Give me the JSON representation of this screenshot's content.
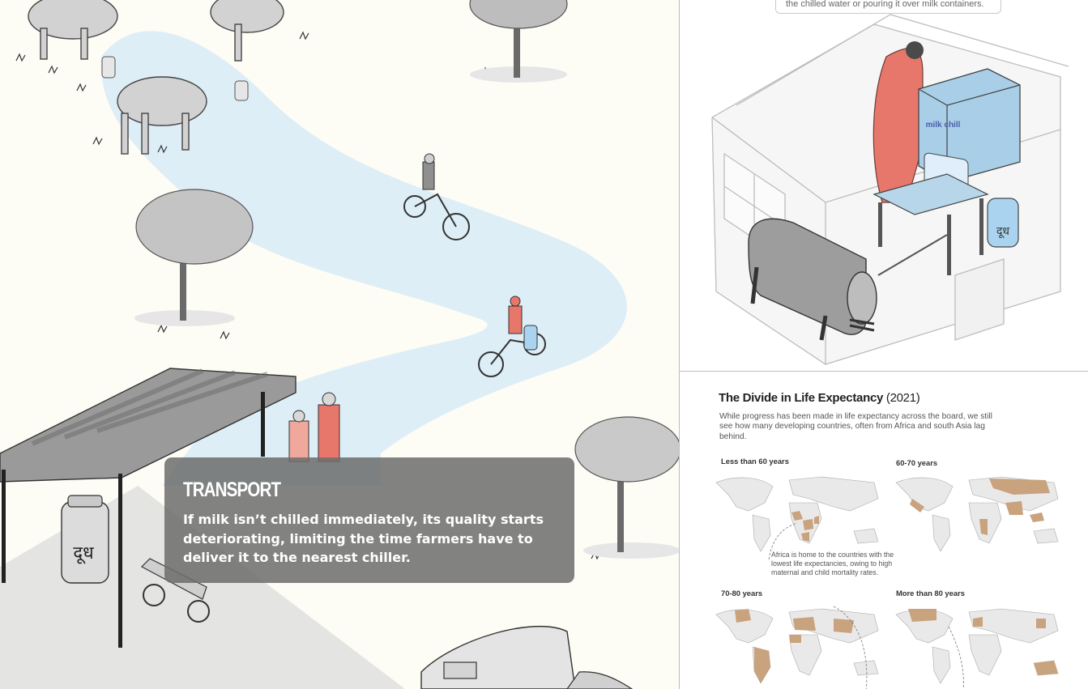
{
  "transport_card": {
    "title": "TRANSPORT",
    "body": "If milk isn’t chilled immediately, its quality starts deteriorating, limiting the time farmers have to deliver it to the nearest chiller."
  },
  "chiller_panel": {
    "note_text": "the chilled water or pouring it over milk containers.",
    "brand_label": "milk chill",
    "can_glyph": "दूध"
  },
  "scene": {
    "can_glyph": "दूध"
  },
  "life_expectancy": {
    "title": "The Divide in Life Expectancy",
    "year": "(2021)",
    "description": "While progress has been made in life expectancy across the board, we still see how many developing countries, often from Africa and south Asia lag behind.",
    "maps": [
      {
        "label": "Less than 60 years"
      },
      {
        "label": "60-70 years"
      },
      {
        "label": "70-80 years"
      },
      {
        "label": "More than 80 years"
      }
    ],
    "annotation": "Africa is home to the countries with the lowest life expectancies, owing to high maternal and child mortality rates."
  },
  "colors": {
    "path_blue": "#d6ecf8",
    "highlight_red": "#e8776b",
    "card_gray": "#6e6e6c",
    "map_tan": "#c9a27e",
    "map_base": "#e9e9e9"
  }
}
